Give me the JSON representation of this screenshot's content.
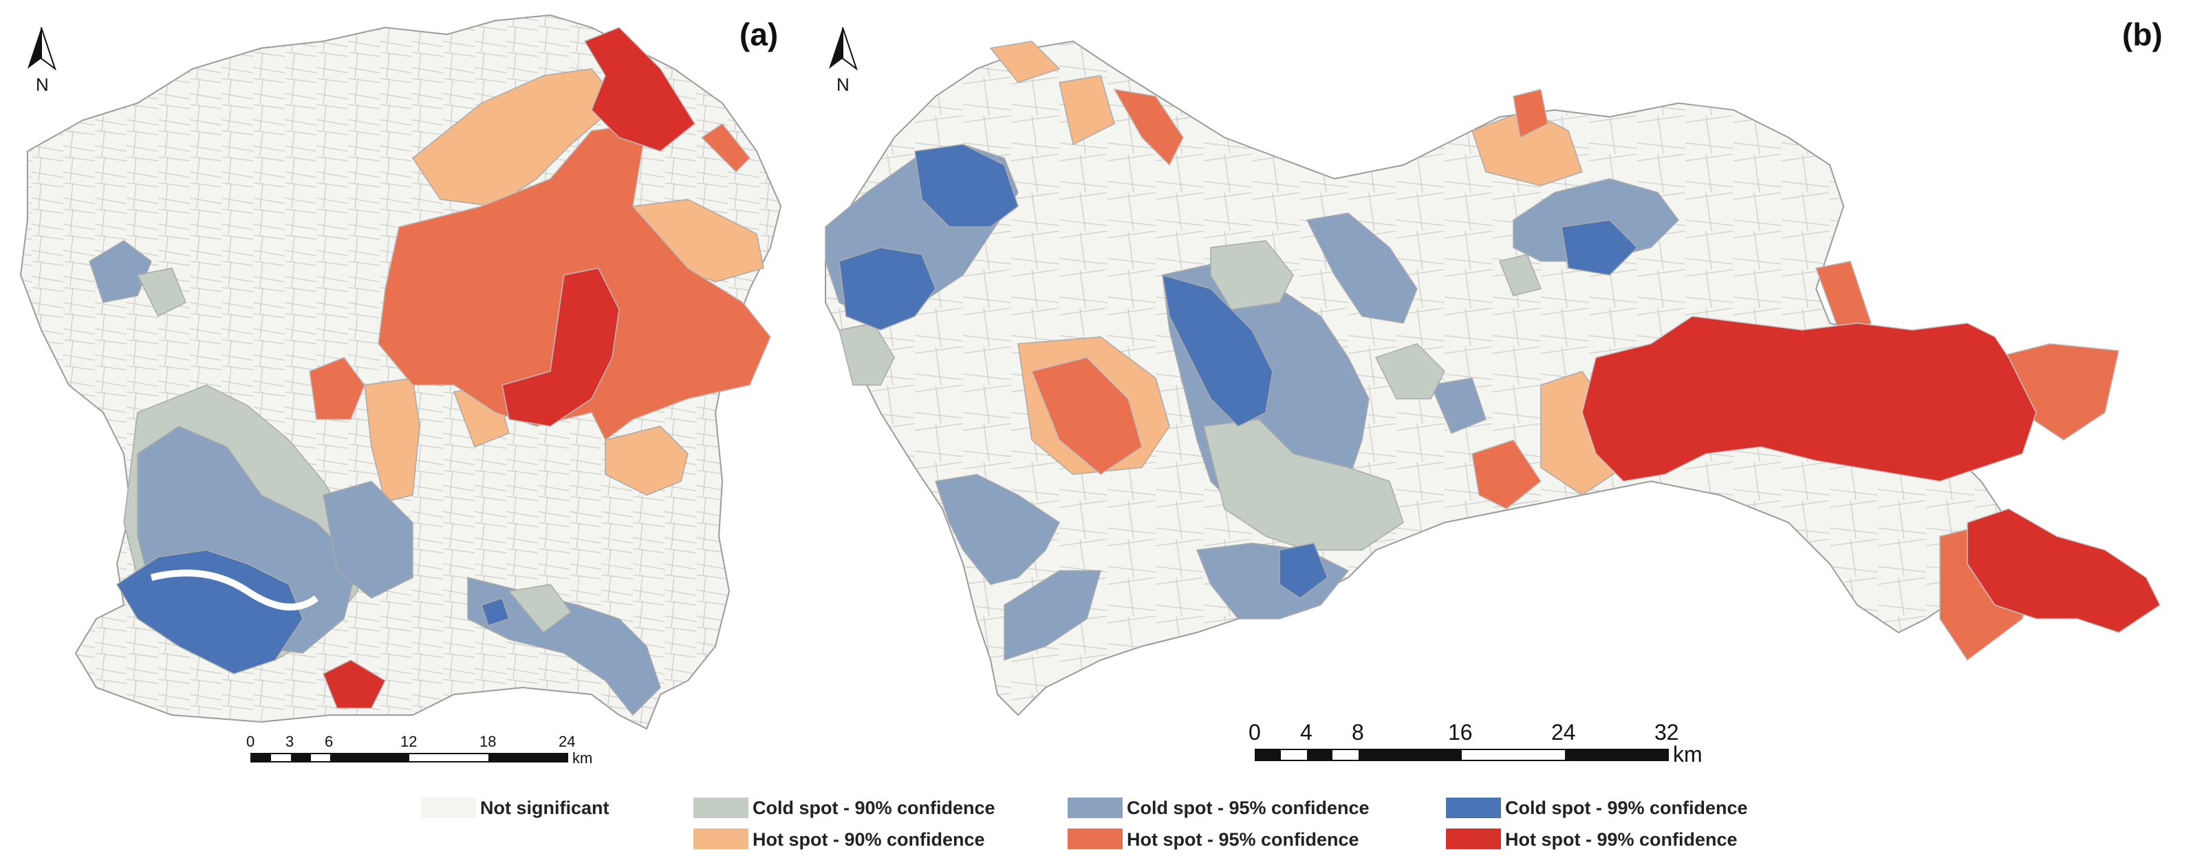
{
  "panels": [
    {
      "label": "(a)",
      "north": "N",
      "scale": {
        "ticks": [
          "0",
          "3",
          "6",
          "12",
          "18",
          "24"
        ],
        "unit": "km"
      }
    },
    {
      "label": "(b)",
      "north": "N",
      "scale": {
        "ticks": [
          "0",
          "4",
          "8",
          "16",
          "24",
          "32"
        ],
        "unit": "km"
      }
    }
  ],
  "legend": {
    "not_significant": {
      "label": "Not significant",
      "color": "#f4f4f1"
    },
    "cold90": {
      "label": "Cold spot - 90% confidence",
      "color": "#c3cdc4"
    },
    "cold95": {
      "label": "Cold spot - 95% confidence",
      "color": "#8aa1bf"
    },
    "cold99": {
      "label": "Cold spot - 99% confidence",
      "color": "#4a74b6"
    },
    "hot90": {
      "label": "Hot spot - 90% confidence",
      "color": "#f6b887"
    },
    "hot95": {
      "label": "Hot spot - 95% confidence",
      "color": "#ea7150"
    },
    "hot99": {
      "label": "Hot spot - 99% confidence",
      "color": "#d8302b"
    }
  }
}
